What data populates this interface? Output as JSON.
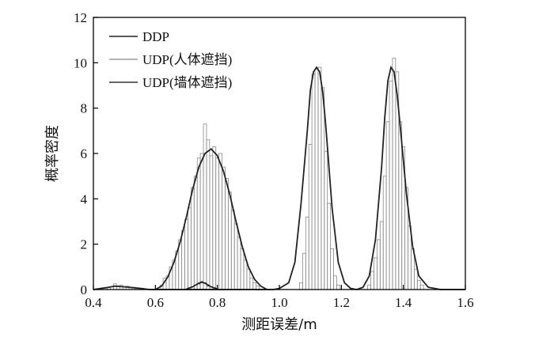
{
  "chart_data": {
    "type": "bar",
    "xlabel": "测距误差/m",
    "ylabel": "概率密度",
    "xlim": [
      0.4,
      1.6
    ],
    "ylim": [
      0,
      12
    ],
    "xticks": [
      0.4,
      0.6,
      0.8,
      1.0,
      1.2,
      1.4,
      1.6
    ],
    "xtick_labels": [
      "0.4",
      "0.6",
      "0.8",
      "1.0",
      "1.2",
      "1.4",
      "1.6"
    ],
    "yticks": [
      0,
      2,
      4,
      6,
      8,
      10,
      12
    ],
    "ytick_labels": [
      "0",
      "2",
      "4",
      "6",
      "8",
      "10",
      "12"
    ],
    "grid": false,
    "legend": {
      "position": "top-left"
    },
    "bin_width": 0.01,
    "series": [
      {
        "name": "DDP",
        "kind": "histogram",
        "color": "#222222",
        "bins": [
          {
            "x": 0.74,
            "y": 0.25
          },
          {
            "x": 0.75,
            "y": 0.35
          },
          {
            "x": 0.76,
            "y": 0.3
          },
          {
            "x": 0.77,
            "y": 0.15
          }
        ],
        "curve": {
          "x": [
            0.7,
            0.72,
            0.74,
            0.75,
            0.76,
            0.78,
            0.8
          ],
          "y": [
            0.02,
            0.12,
            0.28,
            0.32,
            0.28,
            0.12,
            0.02
          ]
        }
      },
      {
        "name": "UDP(人体遮挡)",
        "kind": "histogram",
        "color": "#888888",
        "bins": [
          {
            "x": 0.45,
            "y": 0.1
          },
          {
            "x": 0.47,
            "y": 0.25
          },
          {
            "x": 0.49,
            "y": 0.2
          },
          {
            "x": 0.51,
            "y": 0.15
          },
          {
            "x": 0.53,
            "y": 0.1
          },
          {
            "x": 0.62,
            "y": 0.2
          },
          {
            "x": 0.63,
            "y": 0.5
          },
          {
            "x": 0.64,
            "y": 0.6
          },
          {
            "x": 0.65,
            "y": 1.0
          },
          {
            "x": 0.66,
            "y": 1.3
          },
          {
            "x": 0.67,
            "y": 1.7
          },
          {
            "x": 0.68,
            "y": 2.2
          },
          {
            "x": 0.69,
            "y": 2.6
          },
          {
            "x": 0.7,
            "y": 3.1
          },
          {
            "x": 0.71,
            "y": 3.6
          },
          {
            "x": 0.72,
            "y": 4.5
          },
          {
            "x": 0.73,
            "y": 5.0
          },
          {
            "x": 0.74,
            "y": 5.8
          },
          {
            "x": 0.75,
            "y": 6.0
          },
          {
            "x": 0.76,
            "y": 7.3
          },
          {
            "x": 0.77,
            "y": 6.6
          },
          {
            "x": 0.78,
            "y": 5.9
          },
          {
            "x": 0.79,
            "y": 6.3
          },
          {
            "x": 0.8,
            "y": 5.8
          },
          {
            "x": 0.81,
            "y": 6.0
          },
          {
            "x": 0.82,
            "y": 5.4
          },
          {
            "x": 0.83,
            "y": 4.9
          },
          {
            "x": 0.84,
            "y": 4.3
          },
          {
            "x": 0.85,
            "y": 3.5
          },
          {
            "x": 0.86,
            "y": 2.9
          },
          {
            "x": 0.87,
            "y": 2.3
          },
          {
            "x": 0.88,
            "y": 1.8
          },
          {
            "x": 0.89,
            "y": 1.3
          },
          {
            "x": 0.9,
            "y": 0.9
          },
          {
            "x": 0.91,
            "y": 0.5
          },
          {
            "x": 0.92,
            "y": 0.3
          },
          {
            "x": 0.93,
            "y": 0.15
          },
          {
            "x": 1.07,
            "y": 0.3
          },
          {
            "x": 1.08,
            "y": 1.6
          },
          {
            "x": 1.09,
            "y": 3.2
          },
          {
            "x": 1.1,
            "y": 6.4
          },
          {
            "x": 1.11,
            "y": 9.5
          },
          {
            "x": 1.12,
            "y": 9.7
          },
          {
            "x": 1.13,
            "y": 9.8
          },
          {
            "x": 1.14,
            "y": 8.9
          },
          {
            "x": 1.15,
            "y": 6.1
          },
          {
            "x": 1.16,
            "y": 3.8
          },
          {
            "x": 1.17,
            "y": 1.8
          },
          {
            "x": 1.18,
            "y": 0.6
          },
          {
            "x": 1.19,
            "y": 0.2
          },
          {
            "x": 1.29,
            "y": 0.2
          },
          {
            "x": 1.3,
            "y": 0.8
          },
          {
            "x": 1.31,
            "y": 1.4
          },
          {
            "x": 1.32,
            "y": 2.2
          },
          {
            "x": 1.33,
            "y": 3.0
          },
          {
            "x": 1.34,
            "y": 5.0
          },
          {
            "x": 1.35,
            "y": 7.4
          },
          {
            "x": 1.36,
            "y": 9.2
          },
          {
            "x": 1.37,
            "y": 10.2
          },
          {
            "x": 1.38,
            "y": 9.6
          },
          {
            "x": 1.39,
            "y": 7.4
          },
          {
            "x": 1.4,
            "y": 6.3
          },
          {
            "x": 1.41,
            "y": 4.5
          },
          {
            "x": 1.42,
            "y": 2.8
          },
          {
            "x": 1.43,
            "y": 1.8
          },
          {
            "x": 1.44,
            "y": 0.9
          },
          {
            "x": 1.45,
            "y": 0.4
          },
          {
            "x": 1.46,
            "y": 0.2
          }
        ],
        "curve": {
          "x": [
            0.6,
            0.62,
            0.64,
            0.66,
            0.68,
            0.7,
            0.72,
            0.74,
            0.76,
            0.78,
            0.8,
            0.82,
            0.84,
            0.86,
            0.88,
            0.9,
            0.92,
            0.94,
            0.96
          ],
          "y": [
            0.0,
            0.15,
            0.55,
            1.2,
            2.1,
            3.2,
            4.4,
            5.4,
            6.0,
            6.2,
            5.9,
            5.2,
            4.2,
            3.0,
            1.9,
            1.0,
            0.45,
            0.15,
            0.0
          ]
        }
      },
      {
        "name": "UDP(墙体遮挡)",
        "kind": "histogram",
        "color": "#333333",
        "bins": [],
        "curve": {
          "x": [
            0.4,
            0.44,
            0.47,
            0.5,
            0.53,
            0.56,
            0.58,
            0.98,
            1.0,
            1.03,
            1.05,
            1.07,
            1.09,
            1.1,
            1.11,
            1.12,
            1.13,
            1.14,
            1.15,
            1.17,
            1.19,
            1.21,
            1.23,
            1.25,
            1.27,
            1.29,
            1.31,
            1.33,
            1.34,
            1.35,
            1.36,
            1.37,
            1.38,
            1.39,
            1.41,
            1.43,
            1.45,
            1.48,
            1.52,
            1.6
          ],
          "y": [
            0.0,
            0.08,
            0.15,
            0.12,
            0.08,
            0.04,
            0.0,
            0.0,
            0.05,
            0.3,
            1.2,
            3.8,
            7.0,
            8.8,
            9.6,
            9.8,
            9.6,
            8.7,
            7.2,
            3.6,
            1.2,
            0.3,
            0.05,
            0.0,
            0.1,
            0.6,
            2.2,
            5.4,
            7.6,
            9.2,
            9.8,
            9.6,
            8.6,
            7.2,
            4.2,
            1.9,
            0.6,
            0.1,
            0.0,
            0.0
          ]
        }
      }
    ]
  }
}
